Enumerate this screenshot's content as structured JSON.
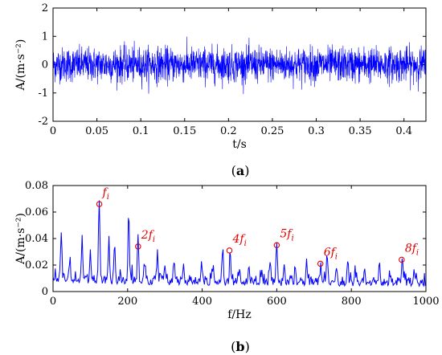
{
  "chart_data": [
    {
      "panel_label": "a",
      "type": "line",
      "xlabel": "t/s",
      "ylabel": "A/(m·s⁻²)",
      "xlim": [
        0,
        0.425
      ],
      "ylim": [
        -2,
        2
      ],
      "xticks": [
        "0",
        "0.05",
        "0.1",
        "0.15",
        "0.2",
        "0.25",
        "0.3",
        "0.35",
        "0.4"
      ],
      "yticks": [
        "-2",
        "-1",
        "0",
        "1",
        "2"
      ],
      "line_color": "#0000ff",
      "signal": {
        "kind": "random vibration signal",
        "samples": 2048,
        "typical_amplitude": 0.55,
        "peak_envelope": [
          {
            "t": 0.0,
            "a": 0.7
          },
          {
            "t": 0.02,
            "a": 0.7
          },
          {
            "t": 0.05,
            "a": 0.8
          },
          {
            "t": 0.1,
            "a": 1.05
          },
          {
            "t": 0.12,
            "a": 1.5
          },
          {
            "t": 0.15,
            "a": 1.05
          },
          {
            "t": 0.2,
            "a": 1.0
          },
          {
            "t": 0.25,
            "a": 1.1
          },
          {
            "t": 0.3,
            "a": 1.15
          },
          {
            "t": 0.35,
            "a": 1.1
          },
          {
            "t": 0.4,
            "a": 1.1
          },
          {
            "t": 0.425,
            "a": 1.1
          }
        ]
      }
    },
    {
      "panel_label": "b",
      "type": "line",
      "xlabel": "f/Hz",
      "ylabel": "A/(m·s⁻²)",
      "xlim": [
        0,
        1000
      ],
      "ylim": [
        0,
        0.08
      ],
      "xticks": [
        "0",
        "200",
        "400",
        "600",
        "800",
        "1000"
      ],
      "yticks": [
        "0",
        "0.02",
        "0.04",
        "0.06",
        "0.08"
      ],
      "line_color": "#0000ff",
      "peaks": [
        {
          "x": 22,
          "y": 0.04
        },
        {
          "x": 45,
          "y": 0.02
        },
        {
          "x": 78,
          "y": 0.038
        },
        {
          "x": 100,
          "y": 0.028
        },
        {
          "x": 124,
          "y": 0.066
        },
        {
          "x": 150,
          "y": 0.032
        },
        {
          "x": 165,
          "y": 0.03
        },
        {
          "x": 203,
          "y": 0.058
        },
        {
          "x": 228,
          "y": 0.034
        },
        {
          "x": 245,
          "y": 0.02
        },
        {
          "x": 280,
          "y": 0.026
        },
        {
          "x": 300,
          "y": 0.018
        },
        {
          "x": 325,
          "y": 0.022
        },
        {
          "x": 350,
          "y": 0.014
        },
        {
          "x": 398,
          "y": 0.02
        },
        {
          "x": 430,
          "y": 0.016
        },
        {
          "x": 455,
          "y": 0.031
        },
        {
          "x": 475,
          "y": 0.029
        },
        {
          "x": 500,
          "y": 0.016
        },
        {
          "x": 525,
          "y": 0.018
        },
        {
          "x": 560,
          "y": 0.014
        },
        {
          "x": 582,
          "y": 0.02
        },
        {
          "x": 600,
          "y": 0.036
        },
        {
          "x": 620,
          "y": 0.016
        },
        {
          "x": 650,
          "y": 0.016
        },
        {
          "x": 680,
          "y": 0.022
        },
        {
          "x": 718,
          "y": 0.018
        },
        {
          "x": 735,
          "y": 0.028
        },
        {
          "x": 760,
          "y": 0.016
        },
        {
          "x": 790,
          "y": 0.018
        },
        {
          "x": 810,
          "y": 0.016
        },
        {
          "x": 835,
          "y": 0.014
        },
        {
          "x": 875,
          "y": 0.022
        },
        {
          "x": 905,
          "y": 0.012
        },
        {
          "x": 937,
          "y": 0.024
        },
        {
          "x": 968,
          "y": 0.016
        }
      ],
      "annotations": [
        {
          "base": "f",
          "sub": "i",
          "x": 124,
          "y": 0.066
        },
        {
          "base": "2f",
          "sub": "i",
          "x": 228,
          "y": 0.034
        },
        {
          "base": "4f",
          "sub": "i",
          "x": 473,
          "y": 0.031
        },
        {
          "base": "5f",
          "sub": "i",
          "x": 600,
          "y": 0.035
        },
        {
          "base": "6f",
          "sub": "i",
          "x": 717,
          "y": 0.021
        },
        {
          "base": "8f",
          "sub": "i",
          "x": 935,
          "y": 0.024
        }
      ],
      "annotation_color": "#e00000"
    }
  ]
}
